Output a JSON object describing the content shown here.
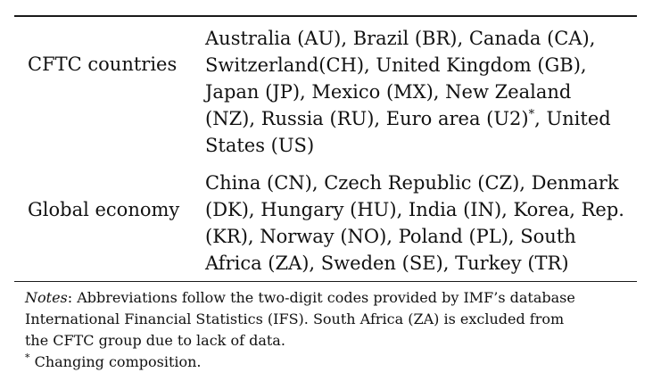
{
  "table": {
    "rows": [
      {
        "label": "CFTC countries",
        "lines": [
          "Australia (AU), Brazil (BR), Canada (CA),",
          "Switzerland(CH), United Kingdom (GB),",
          "Japan (JP), Mexico (MX), New Zealand",
          "(NZ), Russia (RU), Euro area (U2)",
          ", United",
          "States (US)"
        ],
        "marker": "*"
      },
      {
        "label": "Global economy",
        "lines": [
          "China (CN), Czech Republic (CZ), Denmark",
          "(DK), Hungary (HU), India (IN), Korea, Rep.",
          "(KR), Norway (NO), Poland (PL), South",
          "Africa (ZA), Sweden (SE), Turkey (TR)"
        ]
      }
    ]
  },
  "notes": {
    "label": "Notes",
    "line1": ": Abbreviations follow the two-digit codes provided by IMF’s database",
    "line2": "International Financial Statistics (IFS). South Africa (ZA) is excluded from",
    "line3": "the CFTC group due to lack of data.",
    "footnote_marker": "*",
    "footnote": " Changing composition."
  }
}
